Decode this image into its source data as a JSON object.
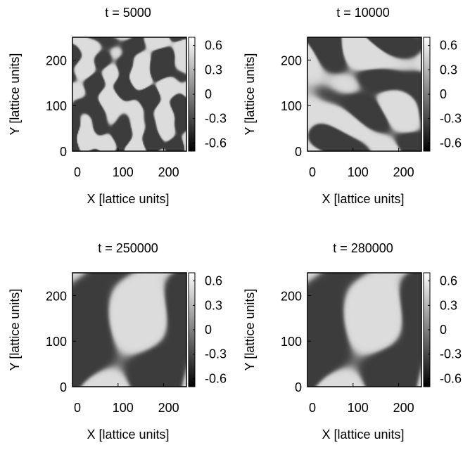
{
  "chart_data": [
    {
      "type": "heatmap",
      "title": "t = 5000",
      "xlabel": "X [lattice units]",
      "ylabel": "Y [lattice units]",
      "xlim": [
        0,
        250
      ],
      "ylim": [
        0,
        250
      ],
      "x_ticks": [
        "0",
        "100",
        "200"
      ],
      "y_ticks": [
        "0",
        "100",
        "200"
      ],
      "colorbar": {
        "ticks": [
          "0.6",
          "0.3",
          "0",
          "-0.3",
          "-0.6"
        ],
        "range": [
          -0.7,
          0.7
        ]
      },
      "field": {
        "seed": 5000,
        "modes": 9,
        "min_wavelength": 42,
        "max_wavelength": 95
      }
    },
    {
      "type": "heatmap",
      "title": "t = 10000",
      "xlabel": "X [lattice units]",
      "ylabel": "Y [lattice units]",
      "xlim": [
        0,
        250
      ],
      "ylim": [
        0,
        250
      ],
      "x_ticks": [
        "0",
        "100",
        "200"
      ],
      "y_ticks": [
        "0",
        "100",
        "200"
      ],
      "colorbar": {
        "ticks": [
          "0.6",
          "0.3",
          "0",
          "-0.3",
          "-0.6"
        ],
        "range": [
          -0.7,
          0.7
        ]
      },
      "field": {
        "seed": 10000,
        "modes": 7,
        "min_wavelength": 80,
        "max_wavelength": 170
      }
    },
    {
      "type": "heatmap",
      "title": "t = 250000",
      "xlabel": "X [lattice units]",
      "ylabel": "Y [lattice units]",
      "xlim": [
        0,
        250
      ],
      "ylim": [
        0,
        250
      ],
      "x_ticks": [
        "0",
        "100",
        "200"
      ],
      "y_ticks": [
        "0",
        "100",
        "200"
      ],
      "colorbar": {
        "ticks": [
          "0.6",
          "0.3",
          "0",
          "-0.3",
          "-0.6"
        ],
        "range": [
          -0.7,
          0.7
        ]
      },
      "field": {
        "seed": 250000,
        "modes": 5,
        "min_wavelength": 170,
        "max_wavelength": 280
      }
    },
    {
      "type": "heatmap",
      "title": "t = 280000",
      "xlabel": "X [lattice units]",
      "ylabel": "Y [lattice units]",
      "xlim": [
        0,
        250
      ],
      "ylim": [
        0,
        250
      ],
      "x_ticks": [
        "0",
        "100",
        "200"
      ],
      "y_ticks": [
        "0",
        "100",
        "200"
      ],
      "colorbar": {
        "ticks": [
          "0.6",
          "0.3",
          "0",
          "-0.3",
          "-0.6"
        ],
        "range": [
          -0.7,
          0.7
        ]
      },
      "field": {
        "seed": 250000,
        "modes": 5,
        "min_wavelength": 170,
        "max_wavelength": 280
      }
    }
  ],
  "colors": {
    "phase_high": "#dcdcdc",
    "phase_low": "#3c3c3c",
    "frame": "#000000"
  }
}
